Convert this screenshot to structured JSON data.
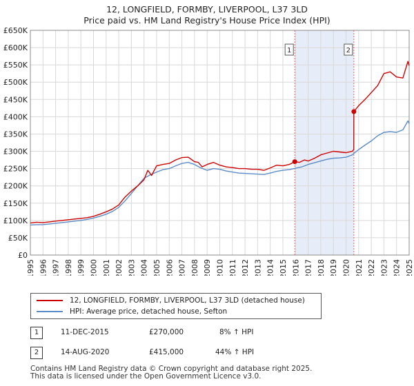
{
  "title_line1": "12, LONGFIELD, FORMBY, LIVERPOOL, L37 3LD",
  "title_line2": "Price paid vs. HM Land Registry's House Price Index (HPI)",
  "colors": {
    "property": "#cc0000",
    "hpi": "#5a8ac6",
    "highlight": "#dde6f5",
    "vline": "#e06060",
    "grid": "#d8d8d8"
  },
  "legend": {
    "property_label": "12, LONGFIELD, FORMBY, LIVERPOOL, L37 3LD (detached house)",
    "hpi_label": "HPI: Average price, detached house, Sefton"
  },
  "transactions": [
    {
      "badge": "1",
      "date": "11-DEC-2015",
      "price": "£270,000",
      "hpi_change": "8% ↑ HPI"
    },
    {
      "badge": "2",
      "date": "14-AUG-2020",
      "price": "£415,000",
      "hpi_change": "44% ↑ HPI"
    }
  ],
  "footer": {
    "line1": "Contains HM Land Registry data © Crown copyright and database right 2025.",
    "line2": "This data is licensed under the Open Government Licence v3.0."
  },
  "chart_data": {
    "type": "line",
    "title": "12, LONGFIELD, FORMBY, LIVERPOOL, L37 3LD — Price paid vs. HM Land Registry's House Price Index (HPI)",
    "xlabel": "",
    "ylabel": "",
    "xlim": [
      1995,
      2025
    ],
    "ylim": [
      0,
      650000
    ],
    "x_ticks": [
      1995,
      1996,
      1997,
      1998,
      1999,
      2000,
      2001,
      2002,
      2003,
      2004,
      2005,
      2006,
      2007,
      2008,
      2009,
      2010,
      2011,
      2012,
      2013,
      2014,
      2015,
      2016,
      2017,
      2018,
      2019,
      2020,
      2021,
      2022,
      2023,
      2024,
      2025
    ],
    "y_ticks": [
      0,
      50000,
      100000,
      150000,
      200000,
      250000,
      300000,
      350000,
      400000,
      450000,
      500000,
      550000,
      600000,
      650000
    ],
    "y_tick_labels": [
      "£0",
      "£50K",
      "£100K",
      "£150K",
      "£200K",
      "£250K",
      "£300K",
      "£350K",
      "£400K",
      "£450K",
      "£500K",
      "£550K",
      "£600K",
      "£650K"
    ],
    "grid": true,
    "highlight_span": [
      2015.94,
      2020.62
    ],
    "series": [
      {
        "name": "12, LONGFIELD, FORMBY, LIVERPOOL, L37 3LD (detached house)",
        "x": [
          1995,
          1995.5,
          1996,
          1996.5,
          1997,
          1997.5,
          1998,
          1998.5,
          1999,
          1999.5,
          2000,
          2000.5,
          2001,
          2001.5,
          2002,
          2002.5,
          2003,
          2003.5,
          2004,
          2004.3,
          2004.6,
          2005,
          2005.5,
          2006,
          2006.5,
          2007,
          2007.5,
          2008,
          2008.3,
          2008.6,
          2009,
          2009.5,
          2010,
          2010.5,
          2011,
          2011.5,
          2012,
          2012.5,
          2013,
          2013.5,
          2014,
          2014.5,
          2015,
          2015.5,
          2015.94,
          2016.3,
          2016.7,
          2017,
          2017.5,
          2018,
          2018.5,
          2019,
          2019.5,
          2020,
          2020.5,
          2020.61,
          2020.62,
          2021,
          2021.5,
          2022,
          2022.5,
          2023,
          2023.5,
          2024,
          2024.5,
          2024.9,
          2025
        ],
        "values": [
          93000,
          95000,
          94000,
          96000,
          98000,
          100000,
          102000,
          104000,
          106000,
          108000,
          112000,
          118000,
          125000,
          133000,
          145000,
          168000,
          185000,
          200000,
          218000,
          245000,
          230000,
          258000,
          262000,
          265000,
          275000,
          282000,
          283000,
          270000,
          268000,
          255000,
          262000,
          268000,
          260000,
          255000,
          253000,
          250000,
          250000,
          248000,
          248000,
          245000,
          252000,
          260000,
          258000,
          262000,
          270000,
          268000,
          275000,
          272000,
          280000,
          290000,
          295000,
          300000,
          298000,
          296000,
          300000,
          305000,
          415000,
          432000,
          450000,
          470000,
          490000,
          525000,
          530000,
          515000,
          512000,
          560000,
          548000
        ]
      },
      {
        "name": "HPI: Average price, detached house, Sefton",
        "x": [
          1995,
          1995.5,
          1996,
          1996.5,
          1997,
          1997.5,
          1998,
          1998.5,
          1999,
          1999.5,
          2000,
          2000.5,
          2001,
          2001.5,
          2002,
          2002.5,
          2003,
          2003.5,
          2004,
          2004.5,
          2005,
          2005.5,
          2006,
          2006.5,
          2007,
          2007.5,
          2008,
          2008.5,
          2009,
          2009.5,
          2010,
          2010.5,
          2011,
          2011.5,
          2012,
          2012.5,
          2013,
          2013.5,
          2014,
          2014.5,
          2015,
          2015.5,
          2016,
          2016.5,
          2017,
          2017.5,
          2018,
          2018.5,
          2019,
          2019.5,
          2020,
          2020.5,
          2021,
          2021.5,
          2022,
          2022.5,
          2023,
          2023.5,
          2024,
          2024.5,
          2024.9,
          2025
        ],
        "values": [
          87000,
          88000,
          88000,
          90000,
          92000,
          94000,
          96000,
          98000,
          100000,
          103000,
          107000,
          112000,
          118000,
          126000,
          138000,
          157000,
          178000,
          200000,
          222000,
          232000,
          240000,
          247000,
          250000,
          258000,
          265000,
          268000,
          262000,
          252000,
          245000,
          250000,
          248000,
          243000,
          240000,
          237000,
          236000,
          235000,
          234000,
          233000,
          237000,
          242000,
          245000,
          247000,
          251000,
          255000,
          262000,
          267000,
          272000,
          277000,
          280000,
          281000,
          283000,
          290000,
          305000,
          318000,
          330000,
          345000,
          355000,
          357000,
          355000,
          362000,
          388000,
          380000
        ]
      }
    ],
    "annotations": [
      {
        "label": "1",
        "x": 2015.94,
        "y": 270000
      },
      {
        "label": "2",
        "x": 2020.62,
        "y": 415000
      }
    ]
  }
}
